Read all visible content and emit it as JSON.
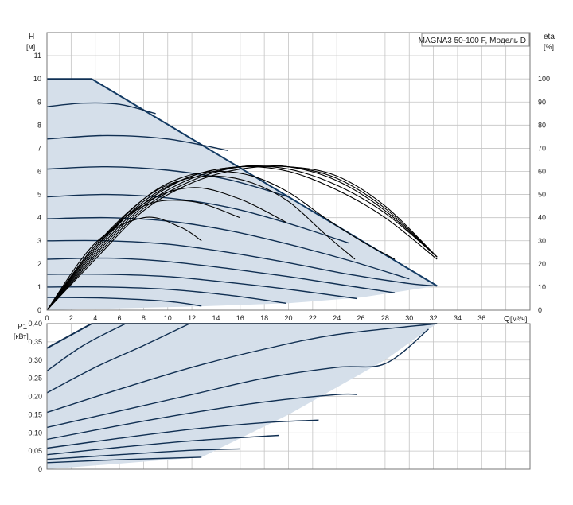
{
  "colors": {
    "envelope_fill": "#d5dfea",
    "envelope_edge": "#123a63",
    "curve": "#102f52",
    "eta_curve": "#000000",
    "grid": "#c4c4c4",
    "frame": "#777777"
  },
  "chart_data": [
    {
      "type": "line",
      "title": "MAGNA3 50-100 F, Модель D",
      "ylabel_top": "H",
      "ylabel_unit": "[м]",
      "y2label_top": "eta",
      "y2label_unit": "[%]",
      "xlabel": "Q",
      "xlabel_unit": "[м³/ч]",
      "xlim": [
        0,
        40
      ],
      "ylim": [
        0,
        12
      ],
      "y2lim": [
        0,
        120
      ],
      "grid": true,
      "x_ticks": [
        "0",
        "2",
        "4",
        "6",
        "8",
        "10",
        "12",
        "14",
        "16",
        "18",
        "20",
        "22",
        "24",
        "26",
        "28",
        "30",
        "32",
        "34",
        "36"
      ],
      "y_ticks": [
        "0",
        "1",
        "2",
        "3",
        "4",
        "5",
        "6",
        "7",
        "8",
        "9",
        "10",
        "11"
      ],
      "y2_ticks": [
        "0",
        "10",
        "20",
        "30",
        "40",
        "50",
        "60",
        "70",
        "80",
        "90",
        "100"
      ],
      "envelope": {
        "x": [
          0,
          0,
          3.7,
          32.3,
          32.3,
          26,
          20,
          12.8,
          0
        ],
        "y": [
          0,
          10,
          10,
          1.05,
          1.05,
          0.55,
          0.3,
          0.17,
          0
        ]
      },
      "head_curves": [
        {
          "h0": 10.0,
          "x": [
            0,
            3.7
          ],
          "y": [
            10.0,
            10.0
          ]
        },
        {
          "h0": 8.8,
          "x": [
            0,
            3,
            6,
            9
          ],
          "y": [
            8.8,
            8.95,
            8.9,
            8.5
          ]
        },
        {
          "h0": 7.4,
          "x": [
            0,
            5,
            10,
            15
          ],
          "y": [
            7.4,
            7.55,
            7.4,
            6.9
          ]
        },
        {
          "h0": 6.1,
          "x": [
            0,
            5,
            10,
            15,
            20
          ],
          "y": [
            6.1,
            6.2,
            6.05,
            5.65,
            4.9
          ]
        },
        {
          "h0": 4.9,
          "x": [
            0,
            5,
            10,
            15,
            20,
            25
          ],
          "y": [
            4.9,
            5.0,
            4.85,
            4.45,
            3.75,
            2.9
          ]
        },
        {
          "h0": 3.95,
          "x": [
            0,
            5,
            10,
            15,
            20,
            25,
            30
          ],
          "y": [
            3.95,
            4.0,
            3.85,
            3.45,
            2.85,
            2.15,
            1.35
          ]
        },
        {
          "h0": 3.0,
          "x": [
            0,
            5,
            10,
            15,
            20,
            25,
            30,
            32.3
          ],
          "y": [
            3.0,
            3.0,
            2.85,
            2.5,
            2.05,
            1.55,
            1.15,
            1.05
          ]
        },
        {
          "h0": 2.2,
          "x": [
            0,
            5,
            10,
            15,
            20,
            25,
            28.8
          ],
          "y": [
            2.2,
            2.25,
            2.1,
            1.8,
            1.45,
            1.05,
            0.75
          ]
        },
        {
          "h0": 1.55,
          "x": [
            0,
            5,
            10,
            15,
            20,
            25.7
          ],
          "y": [
            1.55,
            1.55,
            1.45,
            1.2,
            0.9,
            0.5
          ]
        },
        {
          "h0": 1.0,
          "x": [
            0,
            5,
            10,
            15,
            19.8
          ],
          "y": [
            1.0,
            1.0,
            0.9,
            0.65,
            0.3
          ]
        },
        {
          "h0": 0.55,
          "x": [
            0,
            5,
            10,
            12.8
          ],
          "y": [
            0.55,
            0.52,
            0.38,
            0.18
          ]
        }
      ],
      "eta_curves": [
        {
          "x": [
            0,
            4,
            8,
            11,
            14,
            17,
            20,
            23,
            25.5
          ],
          "eta": [
            0,
            28,
            48,
            56,
            58,
            55,
            47,
            33,
            22
          ]
        },
        {
          "x": [
            0,
            4,
            8,
            11,
            14,
            17,
            20,
            23,
            26,
            28.8
          ],
          "eta": [
            0,
            27,
            48,
            57,
            60,
            58,
            51,
            40,
            30,
            22
          ]
        },
        {
          "x": [
            0,
            4,
            8,
            12,
            16,
            20,
            24,
            28,
            32.3
          ],
          "eta": [
            0,
            26,
            47,
            58,
            62,
            60,
            52,
            40,
            22
          ]
        },
        {
          "x": [
            0,
            4,
            8,
            12,
            16,
            20,
            24,
            28,
            32.3
          ],
          "eta": [
            0,
            25,
            46,
            58,
            62,
            61,
            54,
            42,
            23
          ]
        },
        {
          "x": [
            0,
            4,
            8,
            12,
            16,
            20,
            24,
            28,
            32.3
          ],
          "eta": [
            0,
            24,
            45,
            57,
            62,
            62,
            56,
            43,
            23
          ]
        },
        {
          "x": [
            0,
            4,
            8,
            12,
            16,
            20,
            24,
            28,
            32.3
          ],
          "eta": [
            0,
            23,
            44,
            56,
            62,
            62,
            57,
            44,
            23
          ]
        },
        {
          "x": [
            0,
            4,
            8,
            12,
            16,
            20,
            24,
            28,
            32.3
          ],
          "eta": [
            0,
            22,
            43,
            55,
            61,
            62,
            58,
            45,
            23
          ]
        },
        {
          "x": [
            0,
            4,
            8,
            12,
            16,
            19.8
          ],
          "eta": [
            0,
            27,
            46,
            53,
            48,
            38
          ]
        },
        {
          "x": [
            0,
            4,
            8,
            12,
            16
          ],
          "eta": [
            0,
            28,
            45,
            47,
            40
          ]
        },
        {
          "x": [
            0,
            4,
            8,
            11,
            12.8
          ],
          "eta": [
            0,
            29,
            40,
            36,
            30
          ]
        }
      ]
    },
    {
      "type": "line",
      "ylabel_top": "P1",
      "ylabel_unit": "[кВт]",
      "xlim": [
        0,
        40
      ],
      "ylim": [
        0,
        0.4
      ],
      "grid": true,
      "y_ticks": [
        "0",
        "0,05",
        "0,10",
        "0,15",
        "0,20",
        "0,25",
        "0,30",
        "0,35",
        "0,40"
      ],
      "envelope": {
        "x": [
          0,
          0,
          3.7,
          32.3,
          31.6,
          28,
          20,
          12.8,
          0
        ],
        "y": [
          0,
          0.333,
          0.4,
          0.4,
          0.385,
          0.3,
          0.15,
          0.033,
          0
        ]
      },
      "power_curves": [
        {
          "x": [
            0,
            3.7,
            32.3
          ],
          "y": [
            0.333,
            0.4,
            0.4
          ]
        },
        {
          "x": [
            0,
            3,
            6.5
          ],
          "y": [
            0.27,
            0.34,
            0.4
          ]
        },
        {
          "x": [
            0,
            4,
            8,
            11.8
          ],
          "y": [
            0.21,
            0.28,
            0.34,
            0.4
          ]
        },
        {
          "x": [
            0,
            6,
            12,
            18,
            24,
            32.3
          ],
          "y": [
            0.156,
            0.22,
            0.28,
            0.33,
            0.37,
            0.4
          ]
        },
        {
          "x": [
            0,
            6,
            12,
            18,
            24,
            28,
            31.6
          ],
          "y": [
            0.115,
            0.16,
            0.205,
            0.25,
            0.28,
            0.29,
            0.385
          ]
        },
        {
          "x": [
            0,
            6,
            12,
            18,
            24,
            25.7
          ],
          "y": [
            0.082,
            0.12,
            0.155,
            0.185,
            0.205,
            0.205
          ]
        },
        {
          "x": [
            0,
            6,
            12,
            18,
            22.5
          ],
          "y": [
            0.058,
            0.085,
            0.11,
            0.128,
            0.135
          ]
        },
        {
          "x": [
            0,
            6,
            12,
            19.2
          ],
          "y": [
            0.04,
            0.06,
            0.078,
            0.093
          ]
        },
        {
          "x": [
            0,
            6,
            12,
            16
          ],
          "y": [
            0.027,
            0.04,
            0.052,
            0.056
          ]
        },
        {
          "x": [
            0,
            6,
            12.8
          ],
          "y": [
            0.018,
            0.026,
            0.033
          ]
        }
      ]
    }
  ]
}
